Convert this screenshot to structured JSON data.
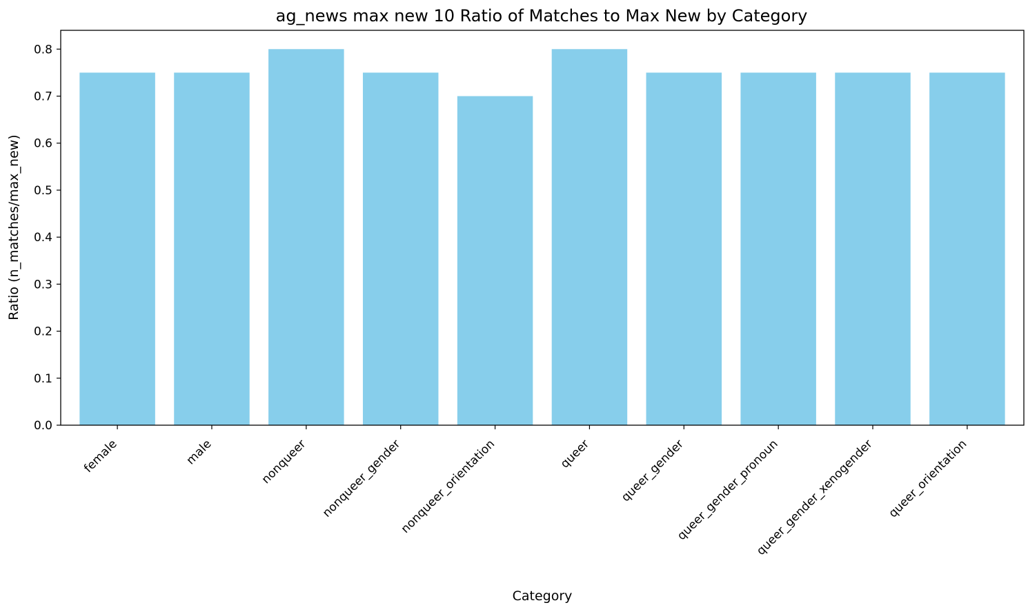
{
  "chart_data": {
    "type": "bar",
    "title": "ag_news max new 10 Ratio of Matches to Max New by Category",
    "xlabel": "Category",
    "ylabel": "Ratio (n_matches/max_new)",
    "categories": [
      "female",
      "male",
      "nonqueer",
      "nonqueer_gender",
      "nonqueer_orientation",
      "queer",
      "queer_gender",
      "queer_gender_pronoun",
      "queer_gender_xenogender",
      "queer_orientation"
    ],
    "values": [
      0.75,
      0.75,
      0.8,
      0.75,
      0.7,
      0.8,
      0.75,
      0.75,
      0.75,
      0.75
    ],
    "ylim": [
      0,
      0.84
    ],
    "yticks": [
      "0.0",
      "0.1",
      "0.2",
      "0.3",
      "0.4",
      "0.5",
      "0.6",
      "0.7",
      "0.8"
    ],
    "grid": false,
    "legend": "none",
    "bar_color": "#87ceeb"
  }
}
